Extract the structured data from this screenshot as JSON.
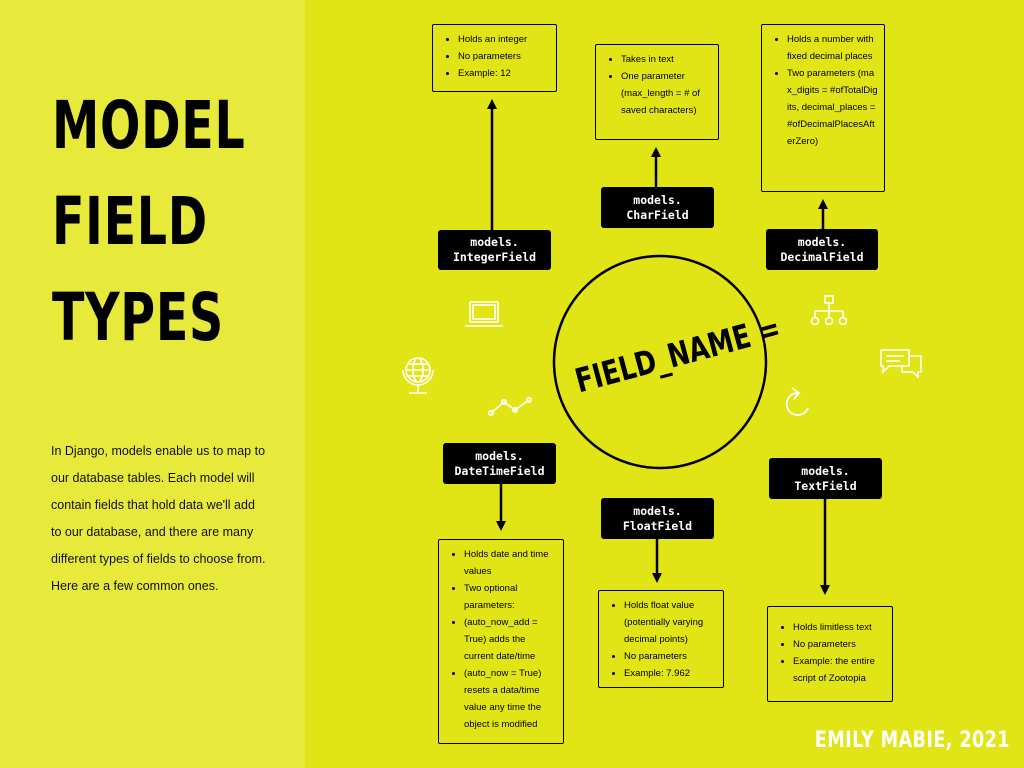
{
  "title": {
    "line1": "MODEL",
    "line2": "FIELD",
    "line3": "TYPES"
  },
  "intro": "In Django, models enable us to map to our database tables. Each model will contain fields that hold data we'll add to our database, and there are many different types of fields to choose from. Here are a few common ones.",
  "center_label": "FIELD_NAME =",
  "credit": "EMILY MABIE, 2021",
  "fields": {
    "integer": {
      "label": "models.\nIntegerField",
      "bullets": [
        "Holds an integer",
        "No parameters",
        "Example: 12"
      ]
    },
    "char": {
      "label": "models.\nCharField",
      "bullets": [
        "Takes in text",
        "One parameter (max_length = # of saved characters)"
      ]
    },
    "decimal": {
      "label": "models.\nDecimalField",
      "bullets": [
        "Holds a number with fixed decimal places",
        "Two parameters (max_digits = #ofTotalDigits, decimal_places = #ofDecimalPlacesAfterZero)"
      ]
    },
    "datetime": {
      "label": "models.\nDateTimeField",
      "bullets": [
        "Holds date and time values",
        "Two optional parameters:",
        "(auto_now_add = True) adds the current date/time",
        "(auto_now = True) resets a data/time value any time the object is modified"
      ]
    },
    "float": {
      "label": "models.\nFloatField",
      "bullets": [
        "Holds float value (potentially varying decimal points)",
        "No parameters",
        "Example: 7.962"
      ]
    },
    "text": {
      "label": "models.\nTextField",
      "bullets": [
        "Holds limitless text",
        "No parameters",
        "Example: the entire script of Zootopia"
      ]
    }
  },
  "icons": [
    "laptop-icon",
    "globe-icon",
    "line-chart-icon",
    "hierarchy-icon",
    "chat-bubbles-icon",
    "refresh-arrow-icon"
  ]
}
